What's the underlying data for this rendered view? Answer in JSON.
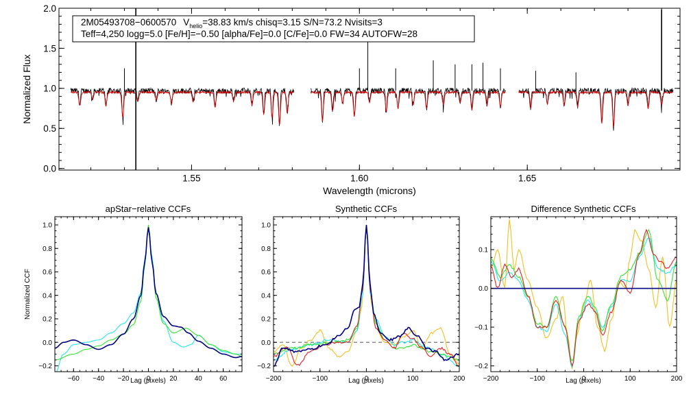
{
  "colors": {
    "observed": "#000000",
    "model": "#dd0000",
    "navy": "#000080",
    "cyan": "#22e6f0",
    "green": "#2ee62e",
    "red": "#e02020",
    "gold": "#f0c020",
    "dashed": "#666666"
  },
  "chart_data": [
    {
      "type": "line",
      "title": "",
      "xlabel": "Wavelength (microns)",
      "ylabel": "Normalized Flux",
      "xlim": [
        1.5105,
        1.6955
      ],
      "ylim": [
        -0.02,
        2.0
      ],
      "xticks": [
        1.55,
        1.6,
        1.65
      ],
      "xtick_labels": [
        "1.55",
        "1.60",
        "1.65"
      ],
      "yticks": [
        0.0,
        0.5,
        1.0,
        1.5,
        2.0
      ],
      "ytick_labels": [
        "0.0",
        "0.5",
        "1.0",
        "1.5",
        "2.0"
      ],
      "annotation": {
        "star_id": "2M05493708−0600570",
        "vhelio_label": "V",
        "vhelio_sub": "helio",
        "vhelio_rest": "=38.83 km/s  chisq=3.15  S/N=73.2  Nvisits=3",
        "line2": "Teff=4,250 logg=5.0 [Fe/H]=−0.50 [alpha/Fe]=0.0 [C/Fe]=0.0 FW=34 AUTOFW=28"
      },
      "chips": [
        [
          1.514,
          1.5805
        ],
        [
          1.5855,
          1.6435
        ],
        [
          1.6475,
          1.6935
        ]
      ],
      "continuum": 0.97,
      "model_continuum": 0.95,
      "absorption_lines": [
        {
          "x": 1.5167,
          "y": 0.79
        },
        {
          "x": 1.5205,
          "y": 0.88
        },
        {
          "x": 1.5245,
          "y": 0.8
        },
        {
          "x": 1.5295,
          "y": 0.65
        },
        {
          "x": 1.534,
          "y": 0.85
        },
        {
          "x": 1.5395,
          "y": 0.86
        },
        {
          "x": 1.544,
          "y": 0.82
        },
        {
          "x": 1.5505,
          "y": 0.84
        },
        {
          "x": 1.557,
          "y": 0.78
        },
        {
          "x": 1.5625,
          "y": 0.85
        },
        {
          "x": 1.568,
          "y": 0.8
        },
        {
          "x": 1.5715,
          "y": 0.68
        },
        {
          "x": 1.574,
          "y": 0.64
        },
        {
          "x": 1.5762,
          "y": 0.55
        },
        {
          "x": 1.5785,
          "y": 0.7
        },
        {
          "x": 1.589,
          "y": 0.6
        },
        {
          "x": 1.592,
          "y": 0.72
        },
        {
          "x": 1.595,
          "y": 0.82
        },
        {
          "x": 1.5985,
          "y": 0.66
        },
        {
          "x": 1.603,
          "y": 0.84
        },
        {
          "x": 1.608,
          "y": 0.73
        },
        {
          "x": 1.6115,
          "y": 0.76
        },
        {
          "x": 1.616,
          "y": 0.8
        },
        {
          "x": 1.62,
          "y": 0.75
        },
        {
          "x": 1.625,
          "y": 0.8
        },
        {
          "x": 1.63,
          "y": 0.83
        },
        {
          "x": 1.6335,
          "y": 0.74
        },
        {
          "x": 1.638,
          "y": 0.8
        },
        {
          "x": 1.642,
          "y": 0.77
        },
        {
          "x": 1.651,
          "y": 0.76
        },
        {
          "x": 1.656,
          "y": 0.82
        },
        {
          "x": 1.661,
          "y": 0.8
        },
        {
          "x": 1.665,
          "y": 0.78
        },
        {
          "x": 1.6722,
          "y": 0.57
        },
        {
          "x": 1.6757,
          "y": 0.52
        },
        {
          "x": 1.68,
          "y": 0.8
        },
        {
          "x": 1.686,
          "y": 0.76
        },
        {
          "x": 1.69,
          "y": 0.8
        }
      ],
      "emission_spikes": [
        {
          "x": 1.53,
          "y": 1.25
        },
        {
          "x": 1.5334,
          "y": 2.0
        },
        {
          "x": 1.5334,
          "y": -0.02
        },
        {
          "x": 1.6025,
          "y": 1.62
        },
        {
          "x": 1.6,
          "y": 1.25
        },
        {
          "x": 1.6108,
          "y": 1.25
        },
        {
          "x": 1.622,
          "y": 1.35
        },
        {
          "x": 1.6285,
          "y": 1.3
        },
        {
          "x": 1.6335,
          "y": 1.3
        },
        {
          "x": 1.6368,
          "y": 1.32
        },
        {
          "x": 1.642,
          "y": 1.25
        },
        {
          "x": 1.6525,
          "y": 1.22
        },
        {
          "x": 1.6645,
          "y": 1.2
        },
        {
          "x": 1.69,
          "y": 1.98
        }
      ]
    },
    {
      "type": "line",
      "title": "apStar−relative CCFs",
      "xlabel": "Lag (pixels)",
      "ylabel": "Normalized CCF",
      "xlim": [
        -75,
        75
      ],
      "ylim": [
        -0.25,
        1.07
      ],
      "xticks": [
        -60,
        -40,
        -20,
        0,
        20,
        40,
        60
      ],
      "xtick_labels": [
        "−60",
        "−40",
        "−20",
        "0",
        "20",
        "40",
        "60"
      ],
      "yticks": [
        -0.2,
        0.0,
        0.2,
        0.4,
        0.6,
        0.8,
        1.0
      ],
      "ytick_labels": [
        "−0.2",
        "0.0",
        "0.2",
        "0.4",
        "0.6",
        "0.8",
        "1.0"
      ],
      "series": [
        {
          "name": "cyan",
          "color": "cyan",
          "x": [
            -75,
            -68,
            -60,
            -50,
            -40,
            -30,
            -20,
            -12,
            -6,
            -3,
            0,
            3,
            6,
            12,
            20,
            28,
            34,
            40,
            50,
            60,
            70,
            75
          ],
          "y": [
            -0.27,
            -0.1,
            -0.02,
            0.0,
            0.02,
            0.08,
            0.16,
            0.25,
            0.42,
            0.7,
            0.99,
            0.72,
            0.42,
            0.18,
            0.0,
            -0.04,
            -0.02,
            0.06,
            -0.02,
            -0.08,
            -0.1,
            -0.1
          ]
        },
        {
          "name": "green",
          "color": "green",
          "x": [
            -75,
            -60,
            -50,
            -40,
            -30,
            -20,
            -12,
            -6,
            -3,
            0,
            3,
            6,
            12,
            20,
            30,
            40,
            50,
            60,
            70,
            75
          ],
          "y": [
            -0.15,
            -0.1,
            -0.06,
            -0.03,
            0.02,
            0.07,
            0.15,
            0.35,
            0.65,
            1.0,
            0.7,
            0.38,
            0.16,
            0.08,
            0.12,
            0.06,
            -0.02,
            -0.07,
            -0.1,
            -0.12
          ]
        },
        {
          "name": "navy",
          "color": "navy",
          "x": [
            -75,
            -68,
            -60,
            -50,
            -40,
            -30,
            -20,
            -12,
            -6,
            -3,
            0,
            3,
            6,
            12,
            20,
            26,
            32,
            40,
            50,
            60,
            70,
            75
          ],
          "y": [
            -0.05,
            0.0,
            0.02,
            -0.02,
            -0.06,
            -0.02,
            0.07,
            0.2,
            0.4,
            0.68,
            0.98,
            0.68,
            0.42,
            0.22,
            0.14,
            0.13,
            0.08,
            0.01,
            -0.05,
            -0.1,
            -0.13,
            -0.12
          ]
        }
      ]
    },
    {
      "type": "line",
      "title": "Synthetic CCFs",
      "xlabel": "Lag (pixels)",
      "ylabel": "",
      "xlim": [
        -200,
        200
      ],
      "ylim": [
        -0.25,
        1.07
      ],
      "xticks": [
        -200,
        -100,
        0,
        100,
        200
      ],
      "xtick_labels": [
        "−200",
        "−100",
        "0",
        "100",
        "200"
      ],
      "yticks": [
        -0.2,
        0.0,
        0.2,
        0.4,
        0.6,
        0.8,
        1.0
      ],
      "ytick_labels": [
        "−0.2",
        "0.0",
        "0.2",
        "0.4",
        "0.6",
        "0.8",
        "1.0"
      ],
      "zero_line": 0.0,
      "series": [
        {
          "name": "gold",
          "color": "gold",
          "x": [
            -200,
            -180,
            -160,
            -140,
            -120,
            -100,
            -80,
            -60,
            -40,
            -20,
            -10,
            0,
            10,
            20,
            40,
            60,
            80,
            100,
            120,
            140,
            160,
            180,
            200
          ],
          "y": [
            -0.08,
            -0.02,
            -0.2,
            -0.05,
            0.02,
            0.1,
            -0.05,
            -0.12,
            -0.08,
            0.1,
            0.3,
            1.0,
            0.35,
            0.12,
            0.0,
            -0.02,
            0.05,
            0.1,
            -0.05,
            0.08,
            0.12,
            -0.1,
            -0.18
          ]
        },
        {
          "name": "cyan",
          "color": "cyan",
          "x": [
            -200,
            -160,
            -120,
            -80,
            -40,
            -20,
            -8,
            0,
            8,
            20,
            40,
            60,
            80,
            100,
            120,
            140,
            160,
            200
          ],
          "y": [
            -0.15,
            -0.06,
            -0.02,
            0.02,
            0.0,
            0.1,
            0.4,
            1.0,
            0.42,
            0.2,
            0.05,
            -0.02,
            0.0,
            0.02,
            -0.03,
            -0.06,
            -0.1,
            -0.2
          ]
        },
        {
          "name": "green",
          "color": "green",
          "x": [
            -200,
            -160,
            -120,
            -80,
            -40,
            -20,
            -8,
            0,
            8,
            20,
            40,
            60,
            80,
            100,
            120,
            140,
            160,
            200
          ],
          "y": [
            -0.1,
            -0.05,
            -0.02,
            0.0,
            0.02,
            0.12,
            0.45,
            1.0,
            0.45,
            0.16,
            0.02,
            -0.05,
            -0.05,
            -0.02,
            -0.05,
            -0.08,
            -0.1,
            -0.15
          ]
        },
        {
          "name": "red",
          "color": "red",
          "x": [
            -200,
            -170,
            -150,
            -120,
            -90,
            -60,
            -40,
            -20,
            -8,
            0,
            8,
            20,
            40,
            60,
            80,
            100,
            120,
            140,
            160,
            180,
            200
          ],
          "y": [
            -0.12,
            -0.04,
            -0.2,
            -0.08,
            -0.02,
            0.0,
            0.0,
            0.14,
            0.45,
            1.0,
            0.45,
            0.12,
            0.02,
            -0.05,
            0.08,
            0.03,
            -0.05,
            -0.12,
            -0.05,
            -0.1,
            -0.2
          ]
        },
        {
          "name": "navy",
          "color": "navy",
          "x": [
            -200,
            -180,
            -150,
            -120,
            -90,
            -60,
            -40,
            -25,
            -15,
            -8,
            0,
            8,
            15,
            30,
            50,
            70,
            90,
            110,
            130,
            150,
            170,
            200
          ],
          "y": [
            -0.2,
            -0.05,
            -0.08,
            -0.06,
            -0.02,
            0.05,
            0.12,
            0.28,
            0.3,
            0.5,
            1.0,
            0.5,
            0.25,
            0.08,
            0.02,
            0.05,
            0.12,
            0.05,
            -0.05,
            -0.08,
            -0.15,
            -0.1
          ]
        }
      ]
    },
    {
      "type": "line",
      "title": "Difference Synthetic CCFs",
      "xlabel": "Lag (pixels)",
      "ylabel": "",
      "xlim": [
        -200,
        200
      ],
      "ylim": [
        -0.215,
        0.185
      ],
      "xticks": [
        -200,
        -100,
        0,
        100,
        200
      ],
      "xtick_labels": [
        "−200",
        "−100",
        "0",
        "100",
        "200"
      ],
      "yticks": [
        -0.2,
        -0.1,
        0.0,
        0.1
      ],
      "ytick_labels": [
        "−0.2",
        "−0.1",
        "0.0",
        "0.1"
      ],
      "zero_line": 0.0,
      "series": [
        {
          "name": "gold",
          "color": "gold",
          "x": [
            -200,
            -185,
            -170,
            -160,
            -150,
            -140,
            -120,
            -100,
            -80,
            -60,
            -45,
            -35,
            -25,
            -15,
            0,
            15,
            30,
            45,
            60,
            75,
            90,
            100,
            110,
            125,
            140,
            155,
            170,
            185,
            200
          ],
          "y": [
            0.05,
            0.1,
            0.0,
            0.18,
            0.05,
            0.1,
            0.02,
            -0.05,
            -0.13,
            -0.08,
            -0.02,
            -0.12,
            -0.21,
            -0.12,
            -0.04,
            0.02,
            -0.1,
            -0.16,
            -0.08,
            0.02,
            0.0,
            0.08,
            0.15,
            0.12,
            0.05,
            -0.05,
            0.08,
            -0.1,
            0.02
          ]
        },
        {
          "name": "cyan",
          "color": "cyan",
          "x": [
            -200,
            -180,
            -160,
            -140,
            -120,
            -100,
            -80,
            -60,
            -40,
            -25,
            -10,
            10,
            25,
            40,
            60,
            80,
            100,
            120,
            140,
            160,
            180,
            200
          ],
          "y": [
            0.07,
            0.02,
            0.04,
            0.02,
            -0.03,
            -0.1,
            -0.11,
            -0.04,
            -0.12,
            -0.2,
            -0.08,
            -0.03,
            -0.06,
            -0.1,
            -0.05,
            0.02,
            0.02,
            0.08,
            0.13,
            0.05,
            0.04,
            0.06
          ]
        },
        {
          "name": "green",
          "color": "green",
          "x": [
            -200,
            -180,
            -160,
            -140,
            -120,
            -100,
            -80,
            -60,
            -40,
            -25,
            -10,
            10,
            25,
            40,
            60,
            80,
            100,
            120,
            140,
            160,
            180,
            200
          ],
          "y": [
            0.08,
            0.03,
            0.06,
            0.03,
            -0.02,
            -0.09,
            -0.1,
            -0.02,
            -0.1,
            -0.19,
            -0.07,
            -0.02,
            -0.05,
            -0.11,
            -0.04,
            0.03,
            0.05,
            0.09,
            0.15,
            0.02,
            -0.03,
            0.07
          ]
        },
        {
          "name": "red",
          "color": "red",
          "x": [
            -200,
            -185,
            -170,
            -155,
            -140,
            -120,
            -100,
            -80,
            -60,
            -40,
            -25,
            -10,
            10,
            25,
            40,
            60,
            80,
            100,
            120,
            135,
            150,
            165,
            180,
            200
          ],
          "y": [
            0.06,
            0.0,
            0.06,
            0.03,
            0.05,
            -0.02,
            -0.1,
            -0.1,
            -0.03,
            -0.1,
            -0.2,
            -0.08,
            -0.04,
            -0.06,
            -0.12,
            -0.06,
            0.02,
            -0.01,
            0.09,
            0.15,
            0.09,
            0.07,
            0.05,
            0.08
          ]
        },
        {
          "name": "navy",
          "color": "navy",
          "x": [
            -200,
            200
          ],
          "y": [
            0.0,
            0.0
          ]
        }
      ]
    }
  ]
}
